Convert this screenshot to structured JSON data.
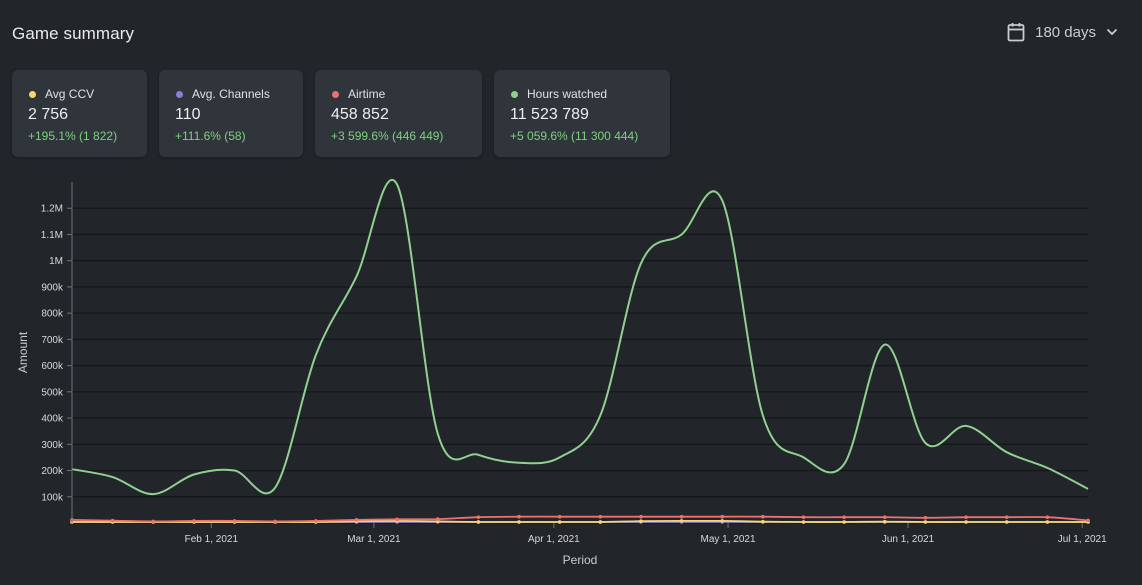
{
  "header": {
    "title": "Game summary",
    "range_label": "180 days",
    "icons": {
      "calendar": "calendar-icon",
      "chevron": "chevron-down-icon"
    }
  },
  "cards": [
    {
      "label": "Avg CCV",
      "value": "2 756",
      "delta": "+195.1% (1 822)",
      "color": "#f5d76e"
    },
    {
      "label": "Avg. Channels",
      "value": "110",
      "delta": "+111.6% (58)",
      "color": "#8a7fd4"
    },
    {
      "label": "Airtime",
      "value": "458 852",
      "delta": "+3 599.6% (446 449)",
      "color": "#f07070"
    },
    {
      "label": "Hours watched",
      "value": "11 523 789",
      "delta": "+5 059.6% (11 300 444)",
      "color": "#8fd18f"
    }
  ],
  "colors": {
    "positive_delta": "#7fd07f",
    "grid": "#141619",
    "background": "#22262b"
  },
  "chart_data": {
    "type": "line",
    "xlabel": "Period",
    "ylabel": "Amount",
    "ylim": [
      0,
      1300000
    ],
    "y_ticks": [
      {
        "value": 100000,
        "label": "100k"
      },
      {
        "value": 200000,
        "label": "200k"
      },
      {
        "value": 300000,
        "label": "300k"
      },
      {
        "value": 400000,
        "label": "400k"
      },
      {
        "value": 500000,
        "label": "500k"
      },
      {
        "value": 600000,
        "label": "600k"
      },
      {
        "value": 700000,
        "label": "700k"
      },
      {
        "value": 800000,
        "label": "800k"
      },
      {
        "value": 900000,
        "label": "900k"
      },
      {
        "value": 1000000,
        "label": "1M"
      },
      {
        "value": 1100000,
        "label": "1.1M"
      },
      {
        "value": 1200000,
        "label": "1.2M"
      }
    ],
    "xlim": [
      "2021-01-08",
      "2021-07-02"
    ],
    "x_ticks": [
      {
        "date": "2021-02-01",
        "label": "Feb 1, 2021"
      },
      {
        "date": "2021-03-01",
        "label": "Mar 1, 2021"
      },
      {
        "date": "2021-04-01",
        "label": "Apr 1, 2021"
      },
      {
        "date": "2021-05-01",
        "label": "May 1, 2021"
      },
      {
        "date": "2021-06-01",
        "label": "Jun 1, 2021"
      },
      {
        "date": "2021-07-01",
        "label": "Jul 1, 2021"
      }
    ],
    "x": [
      "2021-01-08",
      "2021-01-15",
      "2021-01-22",
      "2021-01-29",
      "2021-02-05",
      "2021-02-12",
      "2021-02-19",
      "2021-02-26",
      "2021-03-05",
      "2021-03-12",
      "2021-03-19",
      "2021-03-26",
      "2021-04-02",
      "2021-04-09",
      "2021-04-16",
      "2021-04-23",
      "2021-04-30",
      "2021-05-07",
      "2021-05-14",
      "2021-05-21",
      "2021-05-28",
      "2021-06-04",
      "2021-06-11",
      "2021-06-18",
      "2021-06-25",
      "2021-07-02"
    ],
    "series": [
      {
        "name": "Hours watched",
        "color": "#8fd18f",
        "values": [
          205000,
          175000,
          110000,
          185000,
          200000,
          135000,
          640000,
          940000,
          1290000,
          340000,
          260000,
          230000,
          250000,
          410000,
          990000,
          1100000,
          1230000,
          410000,
          250000,
          225000,
          680000,
          305000,
          370000,
          270000,
          210000,
          130000
        ]
      },
      {
        "name": "Airtime",
        "color": "#f07070",
        "values": [
          12000,
          9000,
          6000,
          8000,
          8000,
          6000,
          8000,
          12000,
          14000,
          15000,
          22000,
          24000,
          24000,
          24000,
          24000,
          24000,
          24000,
          24000,
          22000,
          22000,
          22000,
          20000,
          22000,
          22000,
          22000,
          10000
        ]
      },
      {
        "name": "Avg CCV",
        "color": "#f5d76e",
        "values": [
          3000,
          3000,
          2000,
          3000,
          3000,
          3000,
          4000,
          6000,
          8000,
          6000,
          4000,
          3000,
          3000,
          4000,
          7000,
          8000,
          8000,
          5000,
          3000,
          3000,
          5000,
          3000,
          3000,
          3000,
          3000,
          2000
        ]
      },
      {
        "name": "Avg. Channels",
        "color": "#8a7fd4",
        "values": [
          500,
          500,
          500,
          500,
          500,
          500,
          500,
          500,
          500,
          500,
          500,
          500,
          500,
          500,
          500,
          500,
          500,
          500,
          500,
          500,
          500,
          500,
          500,
          500,
          500,
          500
        ]
      }
    ]
  }
}
